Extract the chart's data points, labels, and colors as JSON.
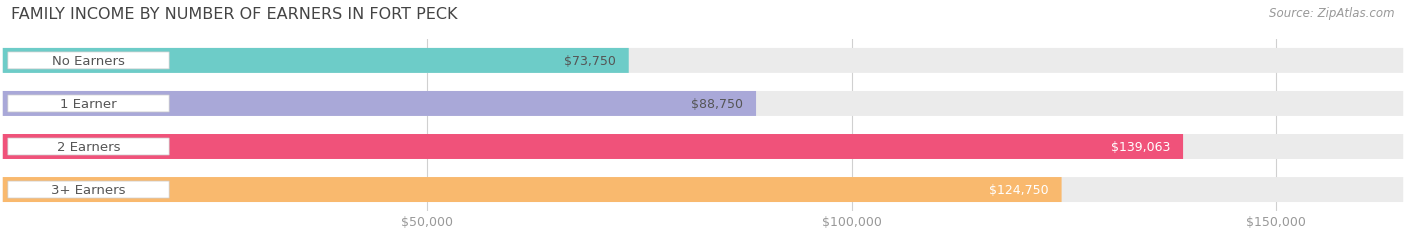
{
  "title": "FAMILY INCOME BY NUMBER OF EARNERS IN FORT PECK",
  "source": "Source: ZipAtlas.com",
  "categories": [
    "No Earners",
    "1 Earner",
    "2 Earners",
    "3+ Earners"
  ],
  "values": [
    73750,
    88750,
    139063,
    124750
  ],
  "bar_colors": [
    "#6dccc8",
    "#a9a8d8",
    "#f0527a",
    "#f9b96e"
  ],
  "value_labels": [
    "$73,750",
    "$88,750",
    "$139,063",
    "$124,750"
  ],
  "value_label_colors": [
    "#555555",
    "#555555",
    "#ffffff",
    "#ffffff"
  ],
  "bar_bg_color": "#ebebeb",
  "background_color": "#ffffff",
  "xmin": 0,
  "xmax": 165000,
  "tick_values": [
    50000,
    100000,
    150000
  ],
  "tick_labels": [
    "$50,000",
    "$100,000",
    "$150,000"
  ],
  "title_fontsize": 11.5,
  "label_fontsize": 9.5,
  "value_fontsize": 9,
  "source_fontsize": 8.5,
  "bar_height": 0.58,
  "row_sep": 0.08
}
